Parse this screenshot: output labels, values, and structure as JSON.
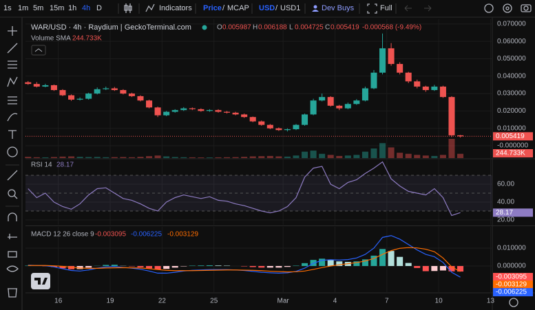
{
  "toolbar": {
    "intervals": [
      "1s",
      "1m",
      "5m",
      "15m",
      "1h",
      "4h",
      "D"
    ],
    "indicators": "Indicators",
    "price_toggle": [
      "Price",
      "/",
      "MCAP"
    ],
    "currency_toggle": [
      "USD",
      "/",
      "USD1"
    ],
    "dev_buys": "Dev Buys",
    "full": "Full"
  },
  "chart_data": [
    {
      "type": "candlestick",
      "title": "WAR/USD · 4h · Raydium | GeckoTerminal.com",
      "ohlc_labels": [
        "O",
        "H",
        "L",
        "C"
      ],
      "change_label": "-0.000568 (-9.49%)",
      "x": [
        14.25,
        14.75,
        15.25,
        15.75,
        16.25,
        16.75,
        17.25,
        17.75,
        18.25,
        18.75,
        19.25,
        19.75,
        20.25,
        20.75,
        21.25,
        21.75,
        22.25,
        22.75,
        23.25,
        23.75,
        24.25,
        24.75,
        25.25,
        25.75,
        26.25,
        26.75,
        27.25,
        27.75,
        28.25,
        28.75,
        29.25,
        29.75,
        30.25,
        30.75,
        31.25,
        31.75,
        32.25,
        32.75,
        33.25,
        33.75,
        34.25,
        34.75,
        35.25,
        35.75,
        36.25,
        36.75,
        37.25,
        37.75,
        38.25,
        38.75,
        39.25
      ],
      "open": [
        0.0365,
        0.0355,
        0.034,
        0.0348,
        0.032,
        0.029,
        0.0265,
        0.027,
        0.03,
        0.0325,
        0.033,
        0.032,
        0.03,
        0.0285,
        0.026,
        0.022,
        0.0175,
        0.0195,
        0.0205,
        0.0215,
        0.021,
        0.02,
        0.0205,
        0.0195,
        0.019,
        0.018,
        0.0165,
        0.014,
        0.012,
        0.01,
        0.009,
        0.0095,
        0.012,
        0.018,
        0.026,
        0.028,
        0.023,
        0.0215,
        0.024,
        0.026,
        0.033,
        0.042,
        0.056,
        0.047,
        0.042,
        0.037,
        0.034,
        0.032,
        0.034,
        0.028,
        0.005987
      ],
      "high": [
        0.0372,
        0.0366,
        0.0356,
        0.0352,
        0.0325,
        0.0295,
        0.0278,
        0.0305,
        0.0335,
        0.034,
        0.0338,
        0.0325,
        0.0305,
        0.029,
        0.0265,
        0.0225,
        0.02,
        0.021,
        0.0222,
        0.022,
        0.0215,
        0.021,
        0.021,
        0.02,
        0.0195,
        0.0185,
        0.0168,
        0.0145,
        0.0125,
        0.0105,
        0.01,
        0.0125,
        0.0185,
        0.027,
        0.03,
        0.0285,
        0.0235,
        0.0248,
        0.0268,
        0.034,
        0.0435,
        0.0645,
        0.059,
        0.048,
        0.0425,
        0.038,
        0.0345,
        0.035,
        0.0345,
        0.0285,
        0.006188
      ],
      "low": [
        0.035,
        0.0335,
        0.0336,
        0.0315,
        0.0285,
        0.0258,
        0.026,
        0.0265,
        0.0295,
        0.032,
        0.0315,
        0.0295,
        0.028,
        0.0255,
        0.0215,
        0.0165,
        0.017,
        0.019,
        0.02,
        0.0205,
        0.0195,
        0.0195,
        0.019,
        0.0185,
        0.0175,
        0.016,
        0.0135,
        0.0115,
        0.0095,
        0.0085,
        0.0082,
        0.009,
        0.0115,
        0.0175,
        0.0255,
        0.0225,
        0.0205,
        0.021,
        0.0235,
        0.0255,
        0.0325,
        0.041,
        0.046,
        0.041,
        0.036,
        0.033,
        0.031,
        0.0315,
        0.0275,
        0.005,
        0.004725
      ],
      "close": [
        0.0355,
        0.034,
        0.0348,
        0.032,
        0.029,
        0.0265,
        0.027,
        0.03,
        0.0325,
        0.033,
        0.032,
        0.03,
        0.0285,
        0.026,
        0.022,
        0.0175,
        0.0195,
        0.0205,
        0.0215,
        0.021,
        0.02,
        0.0205,
        0.0195,
        0.019,
        0.018,
        0.0165,
        0.014,
        0.012,
        0.01,
        0.009,
        0.0095,
        0.012,
        0.018,
        0.026,
        0.028,
        0.023,
        0.0215,
        0.024,
        0.026,
        0.033,
        0.042,
        0.056,
        0.047,
        0.042,
        0.037,
        0.034,
        0.032,
        0.034,
        0.028,
        0.005987,
        0.005419
      ],
      "up_color": "#26a69a",
      "down_color": "#ef5350",
      "volume": {
        "name": "Volume SMA",
        "label": "244.733K",
        "values": [
          60000,
          40000,
          35000,
          50000,
          70000,
          80000,
          60000,
          50000,
          55000,
          40000,
          45000,
          50000,
          40000,
          60000,
          90000,
          120000,
          80000,
          50000,
          40000,
          35000,
          30000,
          30000,
          35000,
          40000,
          45000,
          60000,
          80000,
          90000,
          100000,
          80000,
          70000,
          120000,
          300000,
          350000,
          200000,
          150000,
          100000,
          120000,
          150000,
          300000,
          450000,
          700000,
          500000,
          250000,
          200000,
          150000,
          120000,
          100000,
          150000,
          900000,
          200000
        ]
      },
      "xlim": [
        14.1,
        41.1
      ],
      "xticks": [
        16,
        19,
        22,
        25,
        {
          "value": 29,
          "label": "Mar"
        },
        {
          "value": 32,
          "label": "4"
        },
        {
          "value": 35,
          "label": "7"
        },
        {
          "value": 38,
          "label": "10"
        },
        {
          "value": 41,
          "label": "13"
        }
      ],
      "ylim": [
        -0.0071,
        0.0727
      ],
      "yticks": [
        {
          "value": 0.07,
          "label": "0.070000"
        },
        {
          "value": 0.06,
          "label": "0.060000"
        },
        {
          "value": 0.05,
          "label": "0.050000"
        },
        {
          "value": 0.04,
          "label": "0.040000"
        },
        {
          "value": 0.03,
          "label": "0.030000"
        },
        {
          "value": 0.02,
          "label": "0.020000"
        },
        {
          "value": 0.01,
          "label": "0.010000"
        },
        {
          "value": 0,
          "label": "-0.000000"
        }
      ],
      "grid": true
    },
    {
      "type": "line",
      "title": "RSI 14",
      "color": "#8e7cc3",
      "values": [
        55,
        45,
        50,
        40,
        35,
        32,
        38,
        48,
        55,
        56,
        50,
        44,
        42,
        38,
        33,
        30,
        40,
        45,
        48,
        46,
        44,
        46,
        42,
        41,
        38,
        36,
        33,
        30,
        28,
        30,
        35,
        45,
        68,
        78,
        80,
        60,
        55,
        62,
        65,
        72,
        78,
        85,
        66,
        58,
        52,
        50,
        48,
        55,
        45,
        25,
        28.17
      ],
      "ylim": [
        14.6,
        87.7
      ],
      "yticks": [
        {
          "value": 60,
          "label": "60.00"
        },
        {
          "value": 40,
          "label": "40.00"
        },
        {
          "value": 20,
          "label": "20.00"
        }
      ],
      "levels": [
        30,
        50,
        70
      ],
      "grid": true
    },
    {
      "type": "macd",
      "title": "MACD 12 26 close 9",
      "histogram": {
        "values": [
          0.0002,
          0,
          -0.0001,
          -0.0006,
          -0.0013,
          -0.0018,
          -0.0017,
          -0.0009,
          0.0001,
          0.0006,
          0.0007,
          0.0001,
          -0.0002,
          -0.0007,
          -0.0013,
          -0.002,
          -0.0016,
          -0.0009,
          -0.0002,
          0.0002,
          0.0003,
          0.0004,
          0.0003,
          0.0002,
          0,
          -0.0002,
          -0.0006,
          -0.0009,
          -0.0009,
          -0.0009,
          -0.0005,
          0.0002,
          0.0016,
          0.0034,
          0.0041,
          0.0035,
          0.0026,
          0.0023,
          0.0026,
          0.0037,
          0.0058,
          0.0095,
          0.0084,
          0.0051,
          0.0017,
          -0.0011,
          -0.0029,
          -0.0028,
          -0.0025,
          -0.003,
          -0.003095
        ],
        "colors": [
          "#26a69a",
          "#b2dfdb",
          "#ffcdd2",
          "#ff5252"
        ]
      },
      "macd": {
        "values": [
          0.0005,
          0.0003,
          0.0002,
          -0.0005,
          -0.0015,
          -0.0025,
          -0.0028,
          -0.0022,
          -0.0012,
          -0.0005,
          -0.0003,
          -0.0008,
          -0.0012,
          -0.0018,
          -0.0028,
          -0.004,
          -0.004,
          -0.0035,
          -0.0028,
          -0.0024,
          -0.0022,
          -0.002,
          -0.002,
          -0.002,
          -0.0022,
          -0.0025,
          -0.003,
          -0.0035,
          -0.0038,
          -0.004,
          -0.0038,
          -0.003,
          -0.0012,
          0.0015,
          0.0032,
          0.0035,
          0.0033,
          0.0036,
          0.0045,
          0.0065,
          0.01,
          0.016,
          0.017,
          0.015,
          0.012,
          0.009,
          0.0065,
          0.0052,
          0.002,
          -0.0035,
          -0.006225
        ],
        "color": "#2962ff"
      },
      "signal": {
        "values": [
          0.0003,
          0.0003,
          0.0003,
          0.0001,
          -0.0002,
          -0.0007,
          -0.0011,
          -0.0013,
          -0.0013,
          -0.0011,
          -0.001,
          -0.0009,
          -0.001,
          -0.0011,
          -0.0015,
          -0.002,
          -0.0024,
          -0.0026,
          -0.0026,
          -0.0026,
          -0.0025,
          -0.0024,
          -0.0023,
          -0.0022,
          -0.0022,
          -0.0023,
          -0.0024,
          -0.0026,
          -0.0029,
          -0.0031,
          -0.0033,
          -0.0032,
          -0.0028,
          -0.0019,
          -0.0009,
          0,
          0.0007,
          0.0013,
          0.0019,
          0.0028,
          0.0042,
          0.0065,
          0.0086,
          0.0099,
          0.0103,
          0.0101,
          0.0094,
          0.008,
          0.0045,
          -0.0005,
          -0.003129
        ],
        "color": "#ff6d00"
      },
      "ylim": [
        -0.0146,
        0.0219
      ],
      "yticks": [
        {
          "value": 0.01,
          "label": "0.010000"
        },
        {
          "value": 0,
          "label": "0.000000"
        }
      ],
      "grid": true
    }
  ]
}
